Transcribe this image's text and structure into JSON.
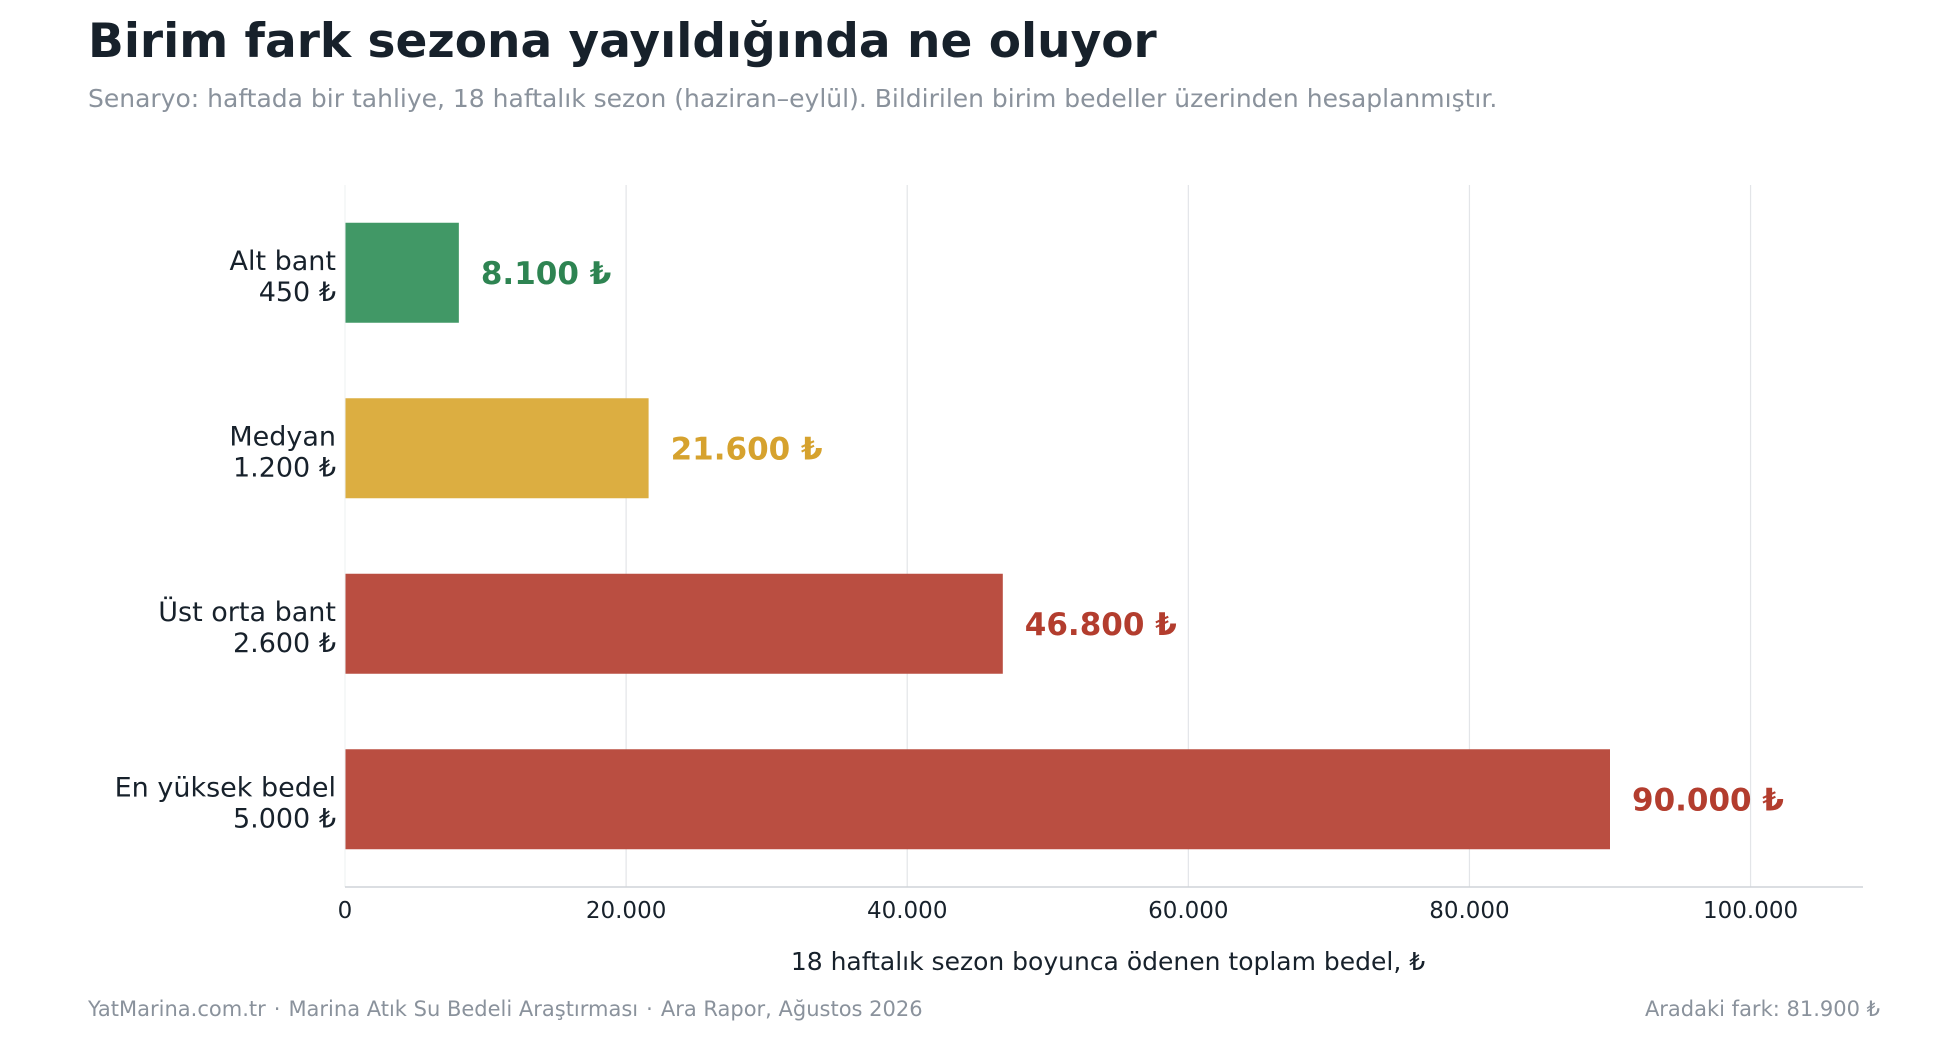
{
  "header": {
    "title": "Birim fark sezona yayıldığında ne oluyor",
    "subtitle": "Senaryo: haftada bir tahliye, 18 haftalık sezon (haziran–eylül). Bildirilen birim bedeller üzerinden hesaplanmıştır."
  },
  "chart_data": {
    "type": "bar",
    "orientation": "horizontal",
    "categories": [
      [
        "Alt bant",
        "450 ₺"
      ],
      [
        "Medyan",
        "1.200 ₺"
      ],
      [
        "Üst orta bant",
        "2.600 ₺"
      ],
      [
        "En yüksek bedel",
        "5.000 ₺"
      ]
    ],
    "values": [
      8100,
      21600,
      46800,
      90000
    ],
    "data_labels": [
      "8.100 ₺",
      "21.600 ₺",
      "46.800 ₺",
      "90.000 ₺"
    ],
    "colors": [
      "#419866",
      "#dcae41",
      "#ba4e41",
      "#ba4e41"
    ],
    "label_colors": [
      "#2e8452",
      "#d6a22e",
      "#b33d2e",
      "#b33d2e"
    ],
    "xlabel": "18 haftalık sezon boyunca ödenen toplam bedel, ₺",
    "xlim": [
      0,
      108000
    ],
    "xticks": [
      0,
      20000,
      40000,
      60000,
      80000,
      100000
    ],
    "xtick_labels": [
      "0",
      "20.000",
      "40.000",
      "60.000",
      "80.000",
      "100.000"
    ],
    "grid": "vertical"
  },
  "footer": {
    "source_site": "YatMarina.com.tr",
    "separator": "·",
    "study": "Marina Atık Su Bedeli Araştırması",
    "report": "Ara Rapor, Ağustos 2026",
    "difference": "Aradaki fark: 81.900 ₺"
  }
}
